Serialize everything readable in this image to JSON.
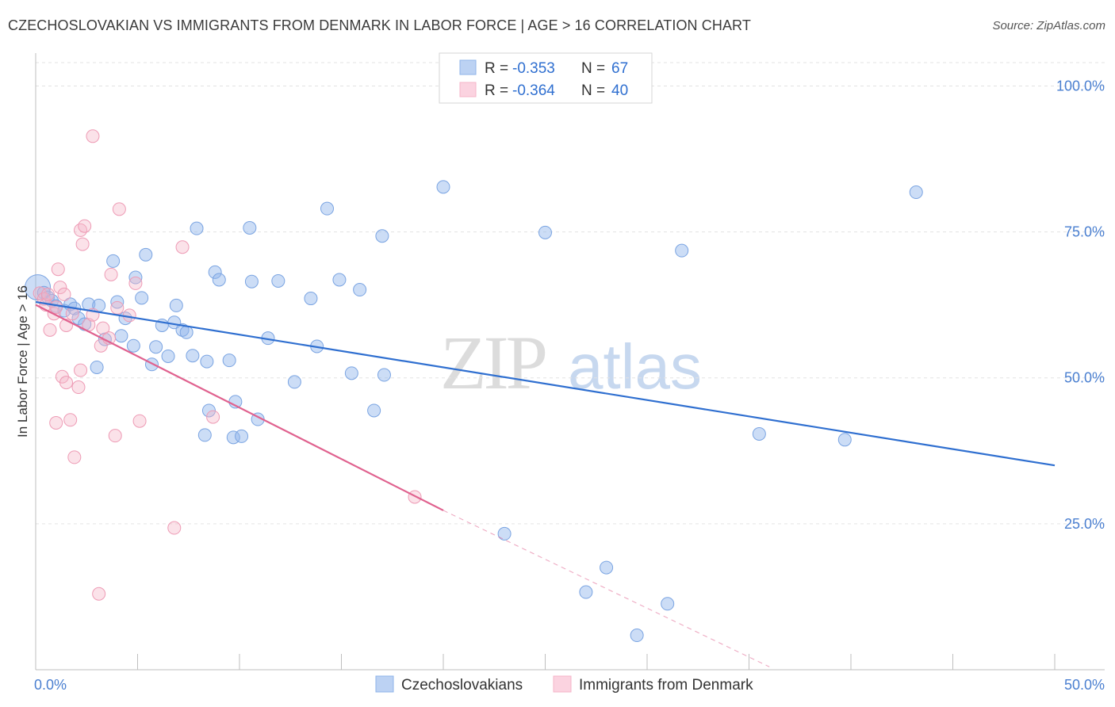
{
  "title": "CZECHOSLOVAKIAN VS IMMIGRANTS FROM DENMARK IN LABOR FORCE | AGE > 16 CORRELATION CHART",
  "source": "Source: ZipAtlas.com",
  "watermark": {
    "zip": "ZIP",
    "atlas": "atlas"
  },
  "legend": {
    "rows": [
      {
        "r_label": "R =",
        "r_value": "-0.353",
        "n_label": "N =",
        "n_value": "67"
      },
      {
        "r_label": "R =",
        "r_value": "-0.364",
        "n_label": "N =",
        "n_value": "40"
      }
    ]
  },
  "chart_data": {
    "type": "scatter",
    "ylabel": "In Labor Force | Age > 16",
    "xlim": [
      0,
      50
    ],
    "ylim": [
      0,
      104
    ],
    "y_ticks": [
      {
        "value": 25,
        "label": "25.0%"
      },
      {
        "value": 50,
        "label": "50.0%"
      },
      {
        "value": 75,
        "label": "75.0%"
      },
      {
        "value": 100,
        "label": "100.0%"
      }
    ],
    "x_tick_labels": [
      {
        "value": 0,
        "label": "0.0%"
      },
      {
        "value": 50,
        "label": "50.0%"
      }
    ],
    "x_minor_ticks": [
      0,
      5,
      10,
      15,
      20,
      25,
      30,
      35,
      40,
      45,
      50
    ],
    "grid": true,
    "legend_position": "top-center",
    "series": [
      {
        "name": "Czechoslovakians",
        "color": "#8fb4ea",
        "stroke": "#7aa4e2",
        "line_color": "#2f6fd0",
        "trend": {
          "x0": 0,
          "y0": 63.0,
          "x1": 50,
          "y1": 35.0
        },
        "points": [
          [
            0.1,
            65.5
          ],
          [
            0.4,
            64.6
          ],
          [
            0.6,
            63.8
          ],
          [
            0.8,
            63.2
          ],
          [
            1.0,
            62.3
          ],
          [
            1.4,
            61.5
          ],
          [
            1.7,
            62.6
          ],
          [
            1.9,
            61.9
          ],
          [
            2.1,
            60.2
          ],
          [
            2.4,
            59.2
          ],
          [
            2.6,
            62.6
          ],
          [
            3.1,
            62.4
          ],
          [
            3.0,
            51.8
          ],
          [
            3.4,
            56.6
          ],
          [
            3.8,
            70.0
          ],
          [
            4.0,
            63.0
          ],
          [
            4.2,
            57.2
          ],
          [
            4.4,
            60.2
          ],
          [
            4.8,
            55.5
          ],
          [
            4.9,
            67.2
          ],
          [
            5.2,
            63.7
          ],
          [
            5.4,
            71.1
          ],
          [
            5.7,
            52.3
          ],
          [
            5.9,
            55.3
          ],
          [
            6.2,
            59.0
          ],
          [
            6.5,
            53.7
          ],
          [
            6.8,
            59.5
          ],
          [
            6.9,
            62.4
          ],
          [
            7.2,
            58.2
          ],
          [
            7.4,
            57.8
          ],
          [
            7.7,
            53.8
          ],
          [
            7.9,
            75.6
          ],
          [
            8.4,
            52.8
          ],
          [
            8.5,
            44.4
          ],
          [
            8.3,
            40.2
          ],
          [
            8.8,
            68.1
          ],
          [
            9.0,
            66.8
          ],
          [
            9.5,
            53.0
          ],
          [
            9.8,
            45.9
          ],
          [
            9.7,
            39.8
          ],
          [
            10.1,
            40.0
          ],
          [
            10.5,
            75.7
          ],
          [
            10.6,
            66.5
          ],
          [
            10.9,
            42.9
          ],
          [
            11.4,
            56.8
          ],
          [
            11.9,
            66.6
          ],
          [
            12.7,
            49.3
          ],
          [
            13.5,
            63.6
          ],
          [
            13.8,
            55.4
          ],
          [
            14.3,
            79.0
          ],
          [
            14.9,
            66.8
          ],
          [
            15.5,
            50.8
          ],
          [
            15.9,
            65.1
          ],
          [
            16.6,
            44.4
          ],
          [
            17.0,
            74.3
          ],
          [
            17.1,
            50.5
          ],
          [
            20.0,
            82.7
          ],
          [
            23.0,
            23.3
          ],
          [
            25.0,
            74.9
          ],
          [
            27.0,
            13.3
          ],
          [
            28.0,
            17.5
          ],
          [
            29.5,
            5.9
          ],
          [
            31.0,
            11.3
          ],
          [
            31.7,
            71.8
          ],
          [
            35.5,
            40.4
          ],
          [
            39.7,
            39.4
          ],
          [
            43.2,
            81.8
          ]
        ]
      },
      {
        "name": "Immigrants from Denmark",
        "color": "#f5b6c9",
        "stroke": "#ee9bb5",
        "line_color": "#e0628f",
        "trend": {
          "x0": 0,
          "y0": 62.5,
          "x1": 20,
          "y1": 27.3
        },
        "trend_dashed": {
          "x0": 20,
          "y0": 27.3,
          "x1": 36,
          "y1": 0.5
        },
        "points": [
          [
            0.2,
            64.5
          ],
          [
            0.4,
            63.5
          ],
          [
            0.5,
            62.5
          ],
          [
            0.6,
            64.3
          ],
          [
            0.7,
            58.2
          ],
          [
            0.9,
            61.0
          ],
          [
            1.0,
            62.1
          ],
          [
            1.1,
            68.6
          ],
          [
            1.2,
            65.5
          ],
          [
            1.4,
            64.3
          ],
          [
            1.5,
            59.0
          ],
          [
            1.3,
            50.2
          ],
          [
            1.5,
            49.2
          ],
          [
            1.0,
            42.3
          ],
          [
            1.7,
            42.8
          ],
          [
            1.9,
            36.4
          ],
          [
            2.1,
            48.4
          ],
          [
            2.2,
            51.3
          ],
          [
            2.2,
            75.3
          ],
          [
            2.3,
            72.9
          ],
          [
            2.4,
            76.0
          ],
          [
            2.6,
            59.1
          ],
          [
            2.8,
            60.8
          ],
          [
            2.8,
            91.4
          ],
          [
            3.1,
            13.0
          ],
          [
            3.2,
            55.5
          ],
          [
            3.3,
            58.5
          ],
          [
            3.6,
            56.8
          ],
          [
            3.7,
            67.7
          ],
          [
            3.9,
            40.1
          ],
          [
            4.0,
            62.0
          ],
          [
            4.1,
            78.9
          ],
          [
            4.6,
            60.7
          ],
          [
            4.9,
            66.2
          ],
          [
            5.1,
            42.6
          ],
          [
            6.8,
            24.3
          ],
          [
            7.2,
            72.4
          ],
          [
            8.7,
            43.3
          ],
          [
            18.6,
            29.6
          ],
          [
            1.8,
            61.0
          ]
        ]
      }
    ]
  }
}
